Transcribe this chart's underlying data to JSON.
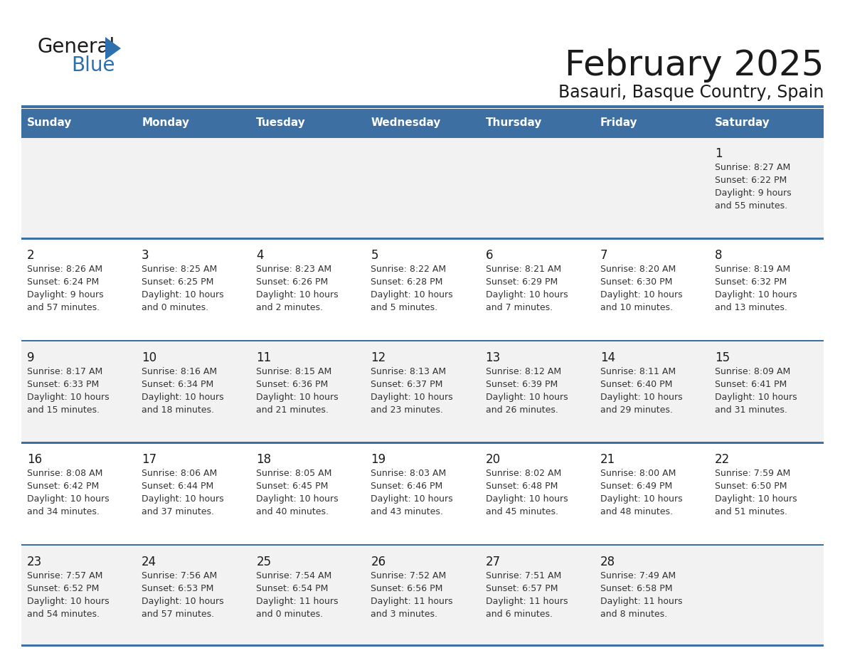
{
  "title": "February 2025",
  "subtitle": "Basauri, Basque Country, Spain",
  "header_bg": "#3d6fa3",
  "header_text": "#ffffff",
  "row_bg_light": "#f2f2f2",
  "row_bg_white": "#ffffff",
  "border_color": "#3d6fa3",
  "day_names": [
    "Sunday",
    "Monday",
    "Tuesday",
    "Wednesday",
    "Thursday",
    "Friday",
    "Saturday"
  ],
  "title_color": "#1a1a1a",
  "subtitle_color": "#1a1a1a",
  "day_number_color": "#1a1a1a",
  "info_text_color": "#333333",
  "logo_text_color": "#1a1a1a",
  "logo_blue_color": "#2e6fae",
  "calendar": [
    [
      null,
      null,
      null,
      null,
      null,
      null,
      {
        "day": 1,
        "sunrise": "8:27 AM",
        "sunset": "6:22 PM",
        "daylight_h": "9 hours",
        "daylight_m": "and 55 minutes."
      }
    ],
    [
      {
        "day": 2,
        "sunrise": "8:26 AM",
        "sunset": "6:24 PM",
        "daylight_h": "9 hours",
        "daylight_m": "and 57 minutes."
      },
      {
        "day": 3,
        "sunrise": "8:25 AM",
        "sunset": "6:25 PM",
        "daylight_h": "10 hours",
        "daylight_m": "and 0 minutes."
      },
      {
        "day": 4,
        "sunrise": "8:23 AM",
        "sunset": "6:26 PM",
        "daylight_h": "10 hours",
        "daylight_m": "and 2 minutes."
      },
      {
        "day": 5,
        "sunrise": "8:22 AM",
        "sunset": "6:28 PM",
        "daylight_h": "10 hours",
        "daylight_m": "and 5 minutes."
      },
      {
        "day": 6,
        "sunrise": "8:21 AM",
        "sunset": "6:29 PM",
        "daylight_h": "10 hours",
        "daylight_m": "and 7 minutes."
      },
      {
        "day": 7,
        "sunrise": "8:20 AM",
        "sunset": "6:30 PM",
        "daylight_h": "10 hours",
        "daylight_m": "and 10 minutes."
      },
      {
        "day": 8,
        "sunrise": "8:19 AM",
        "sunset": "6:32 PM",
        "daylight_h": "10 hours",
        "daylight_m": "and 13 minutes."
      }
    ],
    [
      {
        "day": 9,
        "sunrise": "8:17 AM",
        "sunset": "6:33 PM",
        "daylight_h": "10 hours",
        "daylight_m": "and 15 minutes."
      },
      {
        "day": 10,
        "sunrise": "8:16 AM",
        "sunset": "6:34 PM",
        "daylight_h": "10 hours",
        "daylight_m": "and 18 minutes."
      },
      {
        "day": 11,
        "sunrise": "8:15 AM",
        "sunset": "6:36 PM",
        "daylight_h": "10 hours",
        "daylight_m": "and 21 minutes."
      },
      {
        "day": 12,
        "sunrise": "8:13 AM",
        "sunset": "6:37 PM",
        "daylight_h": "10 hours",
        "daylight_m": "and 23 minutes."
      },
      {
        "day": 13,
        "sunrise": "8:12 AM",
        "sunset": "6:39 PM",
        "daylight_h": "10 hours",
        "daylight_m": "and 26 minutes."
      },
      {
        "day": 14,
        "sunrise": "8:11 AM",
        "sunset": "6:40 PM",
        "daylight_h": "10 hours",
        "daylight_m": "and 29 minutes."
      },
      {
        "day": 15,
        "sunrise": "8:09 AM",
        "sunset": "6:41 PM",
        "daylight_h": "10 hours",
        "daylight_m": "and 31 minutes."
      }
    ],
    [
      {
        "day": 16,
        "sunrise": "8:08 AM",
        "sunset": "6:42 PM",
        "daylight_h": "10 hours",
        "daylight_m": "and 34 minutes."
      },
      {
        "day": 17,
        "sunrise": "8:06 AM",
        "sunset": "6:44 PM",
        "daylight_h": "10 hours",
        "daylight_m": "and 37 minutes."
      },
      {
        "day": 18,
        "sunrise": "8:05 AM",
        "sunset": "6:45 PM",
        "daylight_h": "10 hours",
        "daylight_m": "and 40 minutes."
      },
      {
        "day": 19,
        "sunrise": "8:03 AM",
        "sunset": "6:46 PM",
        "daylight_h": "10 hours",
        "daylight_m": "and 43 minutes."
      },
      {
        "day": 20,
        "sunrise": "8:02 AM",
        "sunset": "6:48 PM",
        "daylight_h": "10 hours",
        "daylight_m": "and 45 minutes."
      },
      {
        "day": 21,
        "sunrise": "8:00 AM",
        "sunset": "6:49 PM",
        "daylight_h": "10 hours",
        "daylight_m": "and 48 minutes."
      },
      {
        "day": 22,
        "sunrise": "7:59 AM",
        "sunset": "6:50 PM",
        "daylight_h": "10 hours",
        "daylight_m": "and 51 minutes."
      }
    ],
    [
      {
        "day": 23,
        "sunrise": "7:57 AM",
        "sunset": "6:52 PM",
        "daylight_h": "10 hours",
        "daylight_m": "and 54 minutes."
      },
      {
        "day": 24,
        "sunrise": "7:56 AM",
        "sunset": "6:53 PM",
        "daylight_h": "10 hours",
        "daylight_m": "and 57 minutes."
      },
      {
        "day": 25,
        "sunrise": "7:54 AM",
        "sunset": "6:54 PM",
        "daylight_h": "11 hours",
        "daylight_m": "and 0 minutes."
      },
      {
        "day": 26,
        "sunrise": "7:52 AM",
        "sunset": "6:56 PM",
        "daylight_h": "11 hours",
        "daylight_m": "and 3 minutes."
      },
      {
        "day": 27,
        "sunrise": "7:51 AM",
        "sunset": "6:57 PM",
        "daylight_h": "11 hours",
        "daylight_m": "and 6 minutes."
      },
      {
        "day": 28,
        "sunrise": "7:49 AM",
        "sunset": "6:58 PM",
        "daylight_h": "11 hours",
        "daylight_m": "and 8 minutes."
      },
      null
    ]
  ]
}
